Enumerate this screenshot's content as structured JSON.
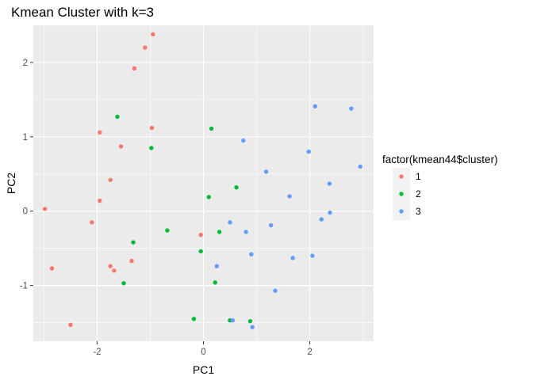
{
  "chart_data": {
    "type": "scatter",
    "title": "Kmean Cluster with k=3",
    "xlabel": "PC1",
    "ylabel": "PC2",
    "xlim": [
      -3.2,
      3.2
    ],
    "ylim": [
      -1.75,
      2.5
    ],
    "x_ticks": [
      -2,
      0,
      2
    ],
    "x_tick_labels": [
      "-2",
      "0",
      "2"
    ],
    "y_ticks": [
      -1,
      0,
      1,
      2
    ],
    "y_tick_labels": [
      "-1",
      "0",
      "1",
      "2"
    ],
    "grid": true,
    "legend": {
      "title": "factor(kmean44$cluster)",
      "position": "right"
    },
    "series": [
      {
        "name": "1",
        "color": "#F8766D",
        "points": [
          [
            -0.95,
            2.38
          ],
          [
            -1.1,
            2.2
          ],
          [
            -1.3,
            1.92
          ],
          [
            -0.97,
            1.12
          ],
          [
            -1.95,
            1.06
          ],
          [
            -1.55,
            0.87
          ],
          [
            -1.75,
            0.42
          ],
          [
            -1.95,
            0.14
          ],
          [
            -2.98,
            0.03
          ],
          [
            -2.1,
            -0.15
          ],
          [
            -0.05,
            -0.32
          ],
          [
            -1.35,
            -0.67
          ],
          [
            -1.75,
            -0.74
          ],
          [
            -1.68,
            -0.8
          ],
          [
            -2.85,
            -0.77
          ],
          [
            -2.5,
            -1.53
          ]
        ]
      },
      {
        "name": "2",
        "color": "#00BA38",
        "points": [
          [
            -1.62,
            1.27
          ],
          [
            -0.98,
            0.85
          ],
          [
            0.15,
            1.11
          ],
          [
            0.62,
            0.32
          ],
          [
            0.1,
            0.19
          ],
          [
            -0.68,
            -0.26
          ],
          [
            0.3,
            -0.28
          ],
          [
            -1.32,
            -0.42
          ],
          [
            -0.05,
            -0.54
          ],
          [
            -1.5,
            -0.97
          ],
          [
            0.22,
            -0.96
          ],
          [
            -0.18,
            -1.45
          ],
          [
            0.5,
            -1.47
          ],
          [
            0.88,
            -1.48
          ]
        ]
      },
      {
        "name": "3",
        "color": "#619CFF",
        "points": [
          [
            2.1,
            1.41
          ],
          [
            2.78,
            1.38
          ],
          [
            0.75,
            0.95
          ],
          [
            1.98,
            0.8
          ],
          [
            2.95,
            0.6
          ],
          [
            1.18,
            0.53
          ],
          [
            2.37,
            0.37
          ],
          [
            1.62,
            0.2
          ],
          [
            2.38,
            -0.02
          ],
          [
            0.5,
            -0.15
          ],
          [
            2.22,
            -0.11
          ],
          [
            1.27,
            -0.19
          ],
          [
            0.8,
            -0.28
          ],
          [
            0.9,
            -0.58
          ],
          [
            2.05,
            -0.6
          ],
          [
            1.68,
            -0.63
          ],
          [
            0.25,
            -0.74
          ],
          [
            1.35,
            -1.07
          ],
          [
            0.55,
            -1.47
          ],
          [
            0.92,
            -1.56
          ]
        ]
      }
    ]
  }
}
